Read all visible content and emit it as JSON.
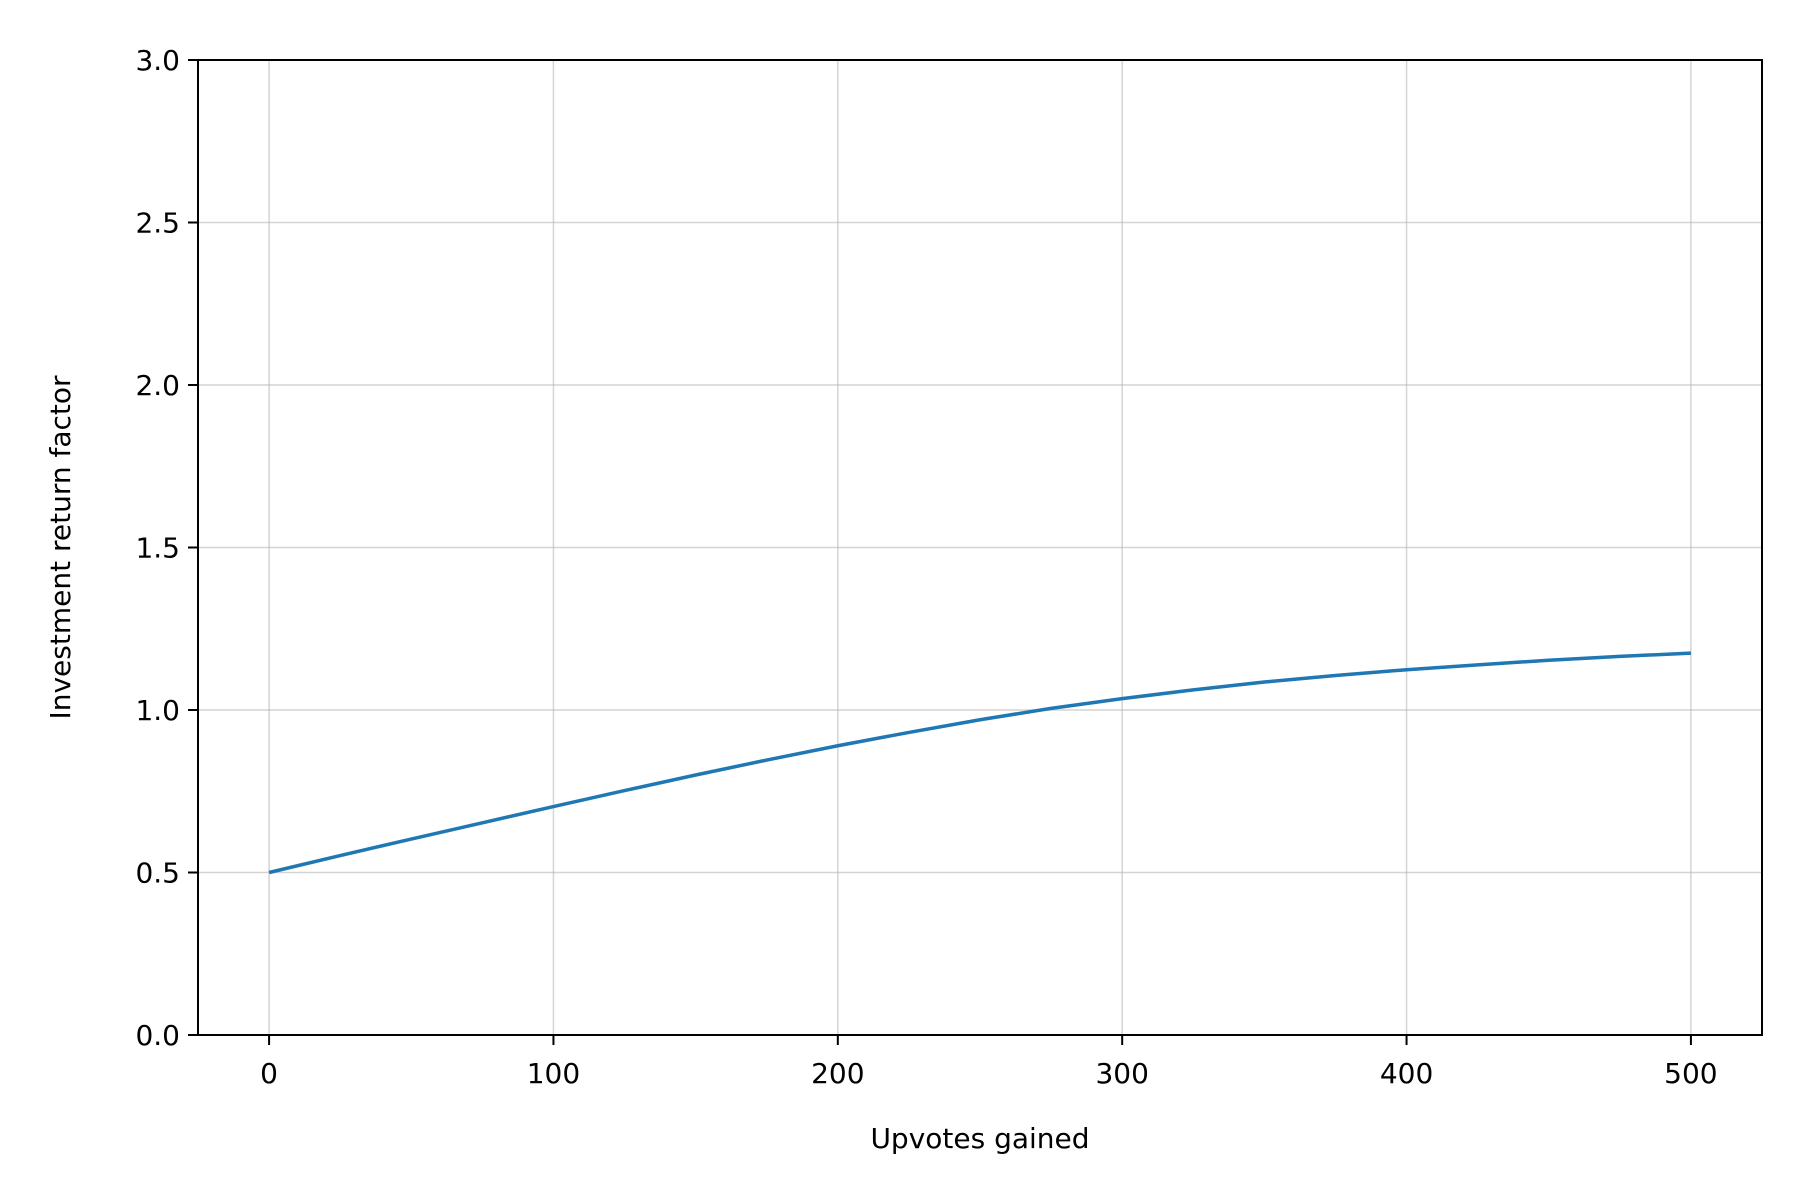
{
  "chart_data": {
    "type": "line",
    "title": "",
    "xlabel": "Upvotes gained",
    "ylabel": "Investment return factor",
    "xlim": [
      -25,
      525
    ],
    "ylim": [
      0,
      3
    ],
    "xticks": [
      0,
      100,
      200,
      300,
      400,
      500
    ],
    "yticks": [
      0,
      0.5,
      1,
      1.5,
      2,
      2.5,
      3
    ],
    "xtick_labels": [
      "0",
      "100",
      "200",
      "300",
      "400",
      "500"
    ],
    "ytick_labels": [
      "0.0",
      "0.5",
      "1.0",
      "1.5",
      "2.0",
      "2.5",
      "3.0"
    ],
    "grid": true,
    "legend": "none",
    "colors": {
      "series": "#1f77b4",
      "grid": "#b0b0b0",
      "axes": "#000000"
    },
    "series": [
      {
        "x": [
          0,
          25,
          50,
          75,
          100,
          125,
          150,
          175,
          200,
          225,
          250,
          275,
          300,
          325,
          350,
          375,
          400,
          425,
          450,
          475,
          500
        ],
        "y": [
          0.5,
          0.552,
          0.603,
          0.653,
          0.703,
          0.752,
          0.8,
          0.846,
          0.89,
          0.931,
          0.97,
          1.005,
          1.035,
          1.062,
          1.086,
          1.106,
          1.124,
          1.139,
          1.153,
          1.165,
          1.175
        ]
      }
    ]
  }
}
